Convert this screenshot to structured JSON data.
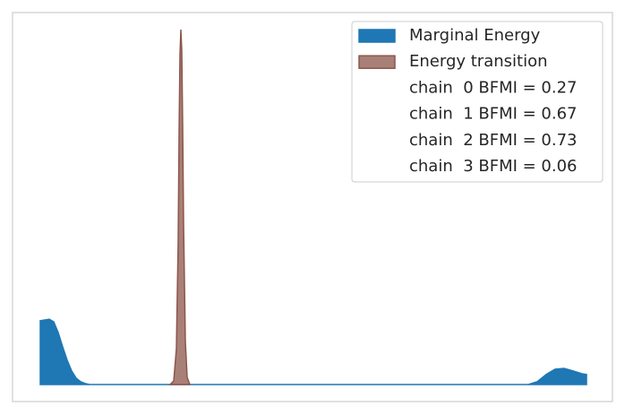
{
  "chart_data": {
    "type": "area",
    "xlim": [
      0,
      610
    ],
    "ylim": [
      0,
      100
    ],
    "series": [
      {
        "name": "Marginal Energy",
        "color": "#1f77b4",
        "x": [
          0,
          5,
          10,
          15,
          20,
          25,
          30,
          35,
          40,
          45,
          50,
          55,
          545,
          555,
          565,
          575,
          585,
          595,
          605,
          610
        ],
        "values": [
          17.8,
          18,
          18.2,
          17.5,
          14.5,
          10.5,
          6.8,
          3.8,
          1.8,
          0.8,
          0.3,
          0,
          0,
          0.8,
          2.8,
          4.3,
          4.5,
          3.8,
          3,
          2.8
        ]
      },
      {
        "name": "Energy transition",
        "color": "#8c564b",
        "x": [
          145,
          149,
          152,
          154,
          155,
          156,
          157,
          158,
          159,
          160,
          162,
          164,
          167
        ],
        "values": [
          0,
          1,
          10,
          40,
          70,
          92,
          99,
          93,
          72,
          45,
          12,
          2,
          0
        ]
      }
    ],
    "annotations": [
      "chain  0 BFMI = 0.27",
      "chain  1 BFMI = 0.67",
      "chain  2 BFMI = 0.73",
      "chain  3 BFMI = 0.06"
    ]
  }
}
